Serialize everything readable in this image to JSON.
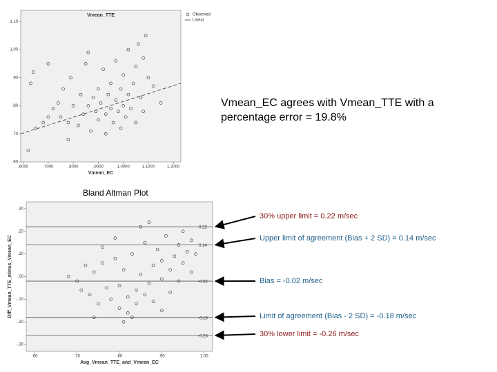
{
  "headline": [
    "Vmean_EC agrees with Vmean_TTE with a",
    "percentage error = 19.8%"
  ],
  "chart_data": [
    {
      "type": "scatter",
      "title": "Vmean_TTE",
      "x_label": "Vmean_EC",
      "xlim": [
        0.59,
        1.23
      ],
      "ylim": [
        0.6,
        1.14
      ],
      "xticks": [
        {
          "value": 0.6,
          "label": ".6000"
        },
        {
          "value": 0.7,
          "label": ".7000"
        },
        {
          "value": 0.8,
          "label": ".8000"
        },
        {
          "value": 0.9,
          "label": ".9000"
        },
        {
          "value": 1.0,
          "label": "1.0000"
        },
        {
          "value": 1.1,
          "label": "1.1000"
        },
        {
          "value": 1.2,
          "label": "1.2000"
        }
      ],
      "yticks": [
        {
          "value": 0.6,
          "label": ".60"
        },
        {
          "value": 0.7,
          "label": ".70"
        },
        {
          "value": 0.8,
          "label": ".80"
        },
        {
          "value": 0.9,
          "label": ".90"
        },
        {
          "value": 1.0,
          "label": "1.00"
        },
        {
          "value": 1.1,
          "label": "1.10"
        }
      ],
      "series": [
        {
          "name": "Observed",
          "color": "#444444",
          "x": [
            0.62,
            0.65,
            0.68,
            0.7,
            0.72,
            0.74,
            0.75,
            0.76,
            0.78,
            0.79,
            0.8,
            0.82,
            0.83,
            0.84,
            0.85,
            0.86,
            0.87,
            0.88,
            0.89,
            0.9,
            0.9,
            0.91,
            0.92,
            0.93,
            0.93,
            0.94,
            0.95,
            0.95,
            0.96,
            0.97,
            0.97,
            0.98,
            0.99,
            0.99,
            1.0,
            1.0,
            1.01,
            1.02,
            1.02,
            1.03,
            1.04,
            1.05,
            1.05,
            1.06,
            1.07,
            1.08,
            1.08,
            1.09,
            1.1,
            1.12,
            1.15,
            0.64,
            0.63,
            0.7,
            0.78,
            0.86
          ],
          "values": [
            0.64,
            0.72,
            0.74,
            0.76,
            0.79,
            0.81,
            0.76,
            0.86,
            0.74,
            0.9,
            0.8,
            0.73,
            0.84,
            0.77,
            0.95,
            0.8,
            0.71,
            0.83,
            0.78,
            0.86,
            0.75,
            0.81,
            0.93,
            0.77,
            0.7,
            0.84,
            0.79,
            0.88,
            0.74,
            0.82,
            0.96,
            0.78,
            0.86,
            0.72,
            0.8,
            0.91,
            0.76,
            0.84,
            1.0,
            0.79,
            0.88,
            0.94,
            0.74,
            1.02,
            0.83,
            0.97,
            0.78,
            1.05,
            0.9,
            0.87,
            0.81,
            0.92,
            0.88,
            0.95,
            0.68,
            0.99
          ]
        },
        {
          "name": "Linear",
          "color": "#555555",
          "x": [
            0.59,
            1.23
          ],
          "values": [
            0.7,
            0.88
          ]
        }
      ]
    },
    {
      "type": "scatter",
      "title": "Bland Altman Plot",
      "x_label": "Avg_Vmean_TTE_and_Vmean_EC",
      "y_label": "Diff_Vmean_TTE_minus_Vmean_EC",
      "xlim": [
        0.58,
        1.02
      ],
      "ylim": [
        -0.33,
        0.33
      ],
      "xticks": [
        {
          "value": 0.6,
          "label": ".60"
        },
        {
          "value": 0.7,
          "label": ".70"
        },
        {
          "value": 0.8,
          "label": ".80"
        },
        {
          "value": 0.9,
          "label": ".90"
        },
        {
          "value": 1.0,
          "label": "1.00"
        }
      ],
      "yticks": [
        {
          "value": 0.3,
          "label": ".30"
        },
        {
          "value": 0.2,
          "label": ".20"
        },
        {
          "value": 0.1,
          "label": ".10"
        },
        {
          "value": 0,
          "label": ".00"
        },
        {
          "value": -0.1,
          "label": "-.10"
        },
        {
          "value": -0.2,
          "label": "-.20"
        },
        {
          "value": -0.3,
          "label": "-.30"
        }
      ],
      "series": [
        {
          "color": "#444444",
          "x": [
            0.68,
            0.7,
            0.72,
            0.73,
            0.74,
            0.75,
            0.76,
            0.77,
            0.78,
            0.79,
            0.8,
            0.8,
            0.81,
            0.82,
            0.82,
            0.83,
            0.84,
            0.84,
            0.85,
            0.86,
            0.86,
            0.87,
            0.88,
            0.88,
            0.89,
            0.9,
            0.9,
            0.91,
            0.92,
            0.92,
            0.93,
            0.94,
            0.94,
            0.95,
            0.95,
            0.96,
            0.97,
            0.97,
            0.98,
            0.85,
            0.87,
            0.79,
            0.74,
            0.81,
            0.9,
            0.76,
            0.83,
            0.71
          ],
          "values": [
            0.0,
            -0.02,
            0.05,
            -0.08,
            0.02,
            -0.12,
            0.06,
            -0.05,
            -0.1,
            0.08,
            -0.14,
            -0.04,
            0.03,
            -0.09,
            -0.16,
            0.1,
            -0.06,
            -0.12,
            0.01,
            -0.08,
            0.15,
            -0.03,
            0.05,
            -0.11,
            0.12,
            -0.01,
            0.07,
            0.18,
            0.03,
            -0.07,
            0.09,
            0.14,
            -0.02,
            0.2,
            0.06,
            0.11,
            0.16,
            0.02,
            0.1,
            0.22,
            0.24,
            0.17,
            -0.18,
            -0.2,
            -0.15,
            0.13,
            -0.18,
            -0.06
          ]
        }
      ],
      "ref_lines": [
        {
          "value": 0.22,
          "note": "30% upper limit = 0.22 m/sec",
          "color": "#8b1a1a"
        },
        {
          "value": 0.14,
          "note": "Upper limit of agreement (Bias + 2 SD) = 0.14 m/sec",
          "color": "#1f5f8b"
        },
        {
          "value": -0.02,
          "note": "Bias = -0.02 m/sec",
          "color": "#1f5f8b"
        },
        {
          "value": -0.18,
          "note": "Limit of agreement (Bias - 2 SD) = -0.18 m/sec",
          "color": "#1f5f8b"
        },
        {
          "value": -0.26,
          "note": "30% lower limit = -0.26 m/sec",
          "color": "#8b1a1a"
        }
      ]
    }
  ]
}
